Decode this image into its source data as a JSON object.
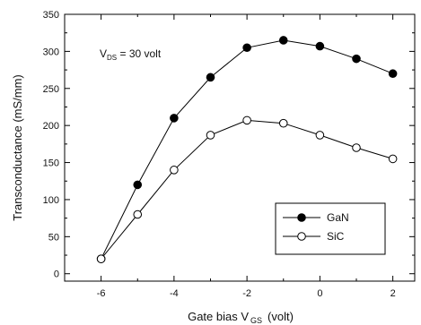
{
  "chart_data": {
    "type": "line",
    "xlabel": "Gate bias V",
    "xlabel_sub": "GS",
    "xlabel_unit": "(volt)",
    "ylabel": "Transconductance (mS/mm)",
    "xlim": [
      -7,
      2.6
    ],
    "ylim": [
      -10,
      350
    ],
    "x_ticks": [
      -6,
      -4,
      -2,
      0,
      2
    ],
    "y_ticks": [
      0,
      50,
      100,
      150,
      200,
      250,
      300,
      350
    ],
    "annotation": {
      "main": "V",
      "sub": "DS",
      "rest": " = 30 volt"
    },
    "legend": {
      "position": "bottom-right"
    },
    "series": [
      {
        "name": "GaN",
        "marker": "filled-circle",
        "x": [
          -6,
          -5,
          -4,
          -3,
          -2,
          -1,
          0,
          1,
          2
        ],
        "y": [
          20,
          120,
          210,
          265,
          305,
          315,
          307,
          290,
          270
        ]
      },
      {
        "name": "SiC",
        "marker": "open-circle",
        "x": [
          -6,
          -5,
          -4,
          -3,
          -2,
          -1,
          0,
          1,
          2
        ],
        "y": [
          20,
          80,
          140,
          187,
          207,
          203,
          187,
          170,
          155
        ]
      }
    ]
  }
}
